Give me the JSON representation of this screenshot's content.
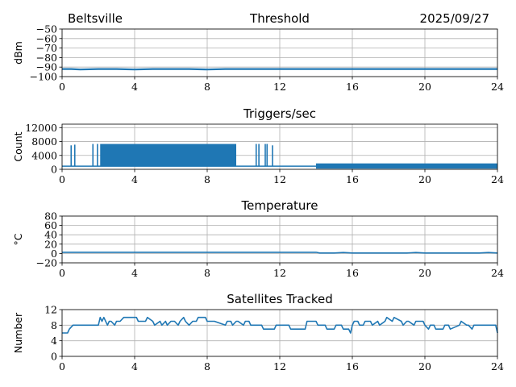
{
  "header": {
    "location": "Beltsville",
    "date": "2025/09/27"
  },
  "series_color": "#1f77b4",
  "chart_data": [
    {
      "id": "threshold",
      "type": "line",
      "title": "Threshold",
      "xlabel": "",
      "ylabel": "dBm",
      "xlim": [
        0,
        24
      ],
      "ylim": [
        -100,
        -50
      ],
      "xticks": [
        0,
        4,
        8,
        12,
        16,
        20,
        24
      ],
      "yticks": [
        -100,
        -90,
        -80,
        -70,
        -60,
        -50
      ],
      "ytick_labels": [
        "−100",
        "−90",
        "−80",
        "−70",
        "−60",
        "−50"
      ],
      "grid": true,
      "series": [
        {
          "name": "threshold",
          "x": [
            0,
            0.5,
            1,
            2,
            3,
            4,
            5,
            6,
            7,
            8,
            9,
            10,
            11,
            12,
            13,
            14,
            15,
            16,
            17,
            18,
            19,
            20,
            21,
            22,
            23,
            24
          ],
          "y": [
            -92,
            -92,
            -92.5,
            -92,
            -92,
            -92.5,
            -92,
            -92,
            -92,
            -92.5,
            -92,
            -92,
            -92,
            -92,
            -92,
            -92,
            -92,
            -92,
            -92,
            -92,
            -92,
            -92,
            -92,
            -92,
            -92,
            -92
          ]
        }
      ]
    },
    {
      "id": "triggers",
      "type": "line",
      "title": "Triggers/sec",
      "xlabel": "",
      "ylabel": "Count",
      "xlim": [
        0,
        24
      ],
      "ylim": [
        0,
        13000
      ],
      "xticks": [
        0,
        4,
        8,
        12,
        16,
        20,
        24
      ],
      "yticks": [
        0,
        4000,
        8000,
        12000
      ],
      "ytick_labels": [
        "0",
        "4000",
        "8000",
        "12000"
      ],
      "grid": true,
      "baseline": [
        {
          "from": 0,
          "to": 14,
          "value": 900
        },
        {
          "from": 14,
          "to": 24,
          "value": 400
        }
      ],
      "bands": [
        {
          "from": 2.1,
          "to": 9.6,
          "low": 900,
          "high": 7300
        },
        {
          "from": 14.0,
          "to": 24.0,
          "low": 400,
          "high": 1700
        }
      ],
      "spikes": [
        {
          "x": 0.5,
          "high": 6900
        },
        {
          "x": 0.7,
          "high": 7100
        },
        {
          "x": 1.7,
          "high": 7300
        },
        {
          "x": 1.95,
          "high": 7300
        },
        {
          "x": 10.7,
          "high": 7300
        },
        {
          "x": 10.85,
          "high": 7300
        },
        {
          "x": 11.2,
          "high": 7300
        },
        {
          "x": 11.3,
          "high": 7300
        },
        {
          "x": 11.6,
          "high": 6900
        }
      ]
    },
    {
      "id": "temperature",
      "type": "line",
      "title": "Temperature",
      "xlabel": "",
      "ylabel": "°C",
      "xlim": [
        0,
        24
      ],
      "ylim": [
        -20,
        80
      ],
      "xticks": [
        0,
        4,
        8,
        12,
        16,
        20,
        24
      ],
      "yticks": [
        -20,
        0,
        20,
        40,
        60,
        80
      ],
      "ytick_labels": [
        "−20",
        "0",
        "20",
        "40",
        "60",
        "80"
      ],
      "grid": true,
      "series": [
        {
          "name": "temperature",
          "x": [
            0,
            2,
            4,
            6,
            8,
            10,
            12,
            13,
            14,
            14.2,
            15,
            15.5,
            16,
            17,
            18,
            19,
            19.5,
            20,
            21,
            22,
            23,
            23.5,
            24
          ],
          "y": [
            2.5,
            2.5,
            2.5,
            2.5,
            2.5,
            2.5,
            2.5,
            2.5,
            2.5,
            1,
            1,
            2,
            1,
            1,
            1,
            1,
            2,
            1,
            1,
            1,
            1,
            2,
            1
          ]
        }
      ]
    },
    {
      "id": "satellites",
      "type": "line",
      "title": "Satellites Tracked",
      "xlabel": "",
      "ylabel": "Number",
      "xlim": [
        0,
        24
      ],
      "ylim": [
        0,
        12
      ],
      "xticks": [
        0,
        4,
        8,
        12,
        16,
        20,
        24
      ],
      "yticks": [
        0,
        4,
        8,
        12
      ],
      "ytick_labels": [
        "0",
        "4",
        "8",
        "12"
      ],
      "grid": true,
      "series": [
        {
          "name": "satellites",
          "x": [
            0,
            0.3,
            0.4,
            0.6,
            0.7,
            2.0,
            2.1,
            2.2,
            2.3,
            2.5,
            2.6,
            2.7,
            2.9,
            3.0,
            3.2,
            3.4,
            3.5,
            4.1,
            4.2,
            4.6,
            4.7,
            5.0,
            5.1,
            5.4,
            5.5,
            5.7,
            5.8,
            6.0,
            6.2,
            6.4,
            6.5,
            6.7,
            6.8,
            7.0,
            7.2,
            7.4,
            7.5,
            7.9,
            8.0,
            8.3,
            8.4,
            9.0,
            9.1,
            9.3,
            9.4,
            9.6,
            9.7,
            10.0,
            10.1,
            10.3,
            10.4,
            11.0,
            11.1,
            11.7,
            11.8,
            12.5,
            12.6,
            13.4,
            13.5,
            14.0,
            14.1,
            14.5,
            14.6,
            15.0,
            15.1,
            15.4,
            15.5,
            15.8,
            15.9,
            16.0,
            16.1,
            16.3,
            16.4,
            16.6,
            16.7,
            17.0,
            17.1,
            17.4,
            17.5,
            17.8,
            17.9,
            18.2,
            18.3,
            18.7,
            18.8,
            19.0,
            19.1,
            19.4,
            19.5,
            19.9,
            20.0,
            20.2,
            20.3,
            20.5,
            20.6,
            21.0,
            21.1,
            21.3,
            21.4,
            21.9,
            22.0,
            22.3,
            22.4,
            22.6,
            22.7,
            23.9,
            24.0
          ],
          "y": [
            6,
            6,
            7,
            8,
            8,
            8,
            10,
            9,
            10,
            8,
            9,
            9,
            8,
            9,
            9,
            10,
            10,
            10,
            9,
            9,
            10,
            9,
            8,
            9,
            8,
            9,
            8,
            9,
            9,
            8,
            9,
            10,
            9,
            8,
            9,
            9,
            10,
            10,
            9,
            9,
            9,
            8,
            9,
            9,
            8,
            9,
            9,
            8,
            9,
            9,
            8,
            8,
            7,
            7,
            8,
            8,
            7,
            7,
            9,
            9,
            8,
            8,
            7,
            7,
            8,
            8,
            7,
            7,
            6,
            8,
            9,
            9,
            8,
            8,
            9,
            9,
            8,
            9,
            8,
            9,
            10,
            9,
            10,
            9,
            8,
            9,
            9,
            8,
            9,
            9,
            8,
            7,
            8,
            8,
            7,
            7,
            8,
            8,
            7,
            8,
            9,
            8,
            8,
            7,
            8,
            8,
            6
          ]
        }
      ]
    }
  ]
}
